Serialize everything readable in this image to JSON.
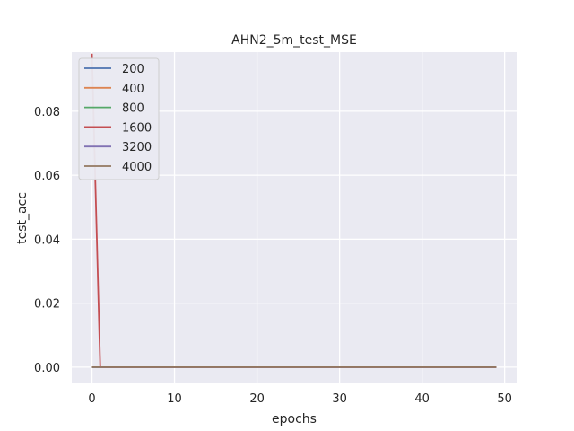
{
  "chart_data": {
    "type": "line",
    "title": "AHN2_5m_test_MSE",
    "xlabel": "epochs",
    "ylabel": "test_acc",
    "xlim": [
      -2.45,
      51.45
    ],
    "ylim": [
      -0.0048,
      0.0985
    ],
    "xticks": [
      0,
      10,
      20,
      30,
      40,
      50
    ],
    "yticks": [
      0.0,
      0.02,
      0.04,
      0.06,
      0.08
    ],
    "ytick_labels": [
      "0.00",
      "0.02",
      "0.04",
      "0.06",
      "0.08"
    ],
    "grid": true,
    "legend_position": "top-left",
    "series": [
      {
        "name": "200",
        "color": "#4c72b0",
        "x": [
          0,
          1,
          49
        ],
        "y": [
          0.0,
          0.0,
          0.0
        ]
      },
      {
        "name": "400",
        "color": "#dd8452",
        "x": [
          0,
          1,
          49
        ],
        "y": [
          0.0,
          0.0,
          0.0
        ]
      },
      {
        "name": "800",
        "color": "#55a868",
        "x": [
          0,
          1,
          49
        ],
        "y": [
          0.0,
          0.0,
          0.0
        ]
      },
      {
        "name": "1600",
        "color": "#c44e52",
        "x": [
          0,
          1,
          49
        ],
        "y": [
          0.098,
          0.0,
          0.0
        ]
      },
      {
        "name": "3200",
        "color": "#8172b3",
        "x": [
          0,
          1,
          49
        ],
        "y": [
          0.0,
          0.0,
          0.0
        ]
      },
      {
        "name": "4000",
        "color": "#937860",
        "x": [
          0,
          1,
          49
        ],
        "y": [
          0.0,
          0.0,
          0.0
        ]
      }
    ]
  }
}
